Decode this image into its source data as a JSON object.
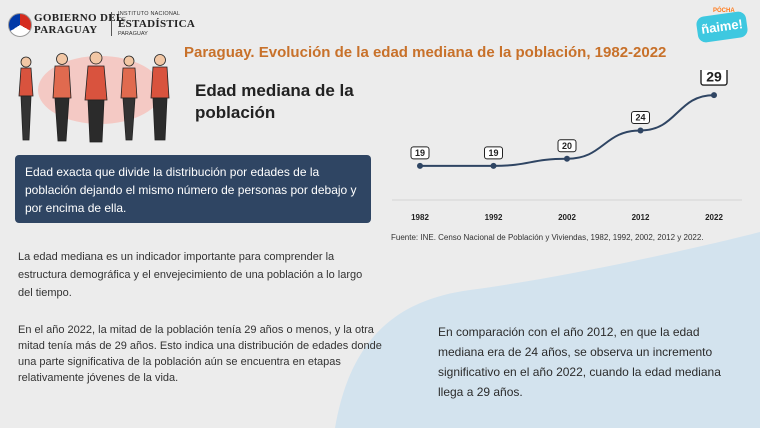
{
  "logos": {
    "gobierno_line1": "GOBIERNO DEL",
    "gobierno_line2": "PARAGUAY",
    "ine_line1": "INSTITUTO NACIONAL DE",
    "ine_line2": "ESTADÍSTICA",
    "ine_line3": "PARAGUAY",
    "aime_top": "PÓCHA",
    "aime_main": "ñaime!"
  },
  "colors": {
    "title": "#c8712a",
    "box": "#2f4563",
    "line": "#2f4563",
    "blob": "#d3e3ee"
  },
  "chart_data": {
    "type": "line",
    "title": "Paraguay. Evolución de la edad mediana de la población, 1982-2022",
    "categories": [
      "1982",
      "1992",
      "2002",
      "2012",
      "2022"
    ],
    "values": [
      19,
      19,
      20,
      24,
      29
    ],
    "ylim": [
      17,
      30
    ],
    "grid": false
  },
  "subtitle": "Edad mediana de la población",
  "definition": "Edad exacta que divide la distribución por edades de la población dejando el mismo número de personas por debajo y por encima de ella.",
  "source": "Fuente: INE. Censo Nacional de Población y Viviendas, 1982, 1992, 2002, 2012 y 2022.",
  "paragraphs": {
    "p1": "La edad mediana es un indicador importante para comprender la estructura demográfica y el envejecimiento de una población a lo largo del tiempo.",
    "p2": "En el año 2022, la mitad de la población tenía 29 años o menos, y la otra mitad tenía más de 29 años. Esto indica una distribución de edades donde una parte significativa de la población aún se encuentra en etapas relativamente jóvenes de la vida.",
    "p3": "En comparación con el año 2012, en que la edad mediana era de 24 años, se observa un incremento significativo en el año 2022, cuando la edad mediana llega a 29 años."
  }
}
